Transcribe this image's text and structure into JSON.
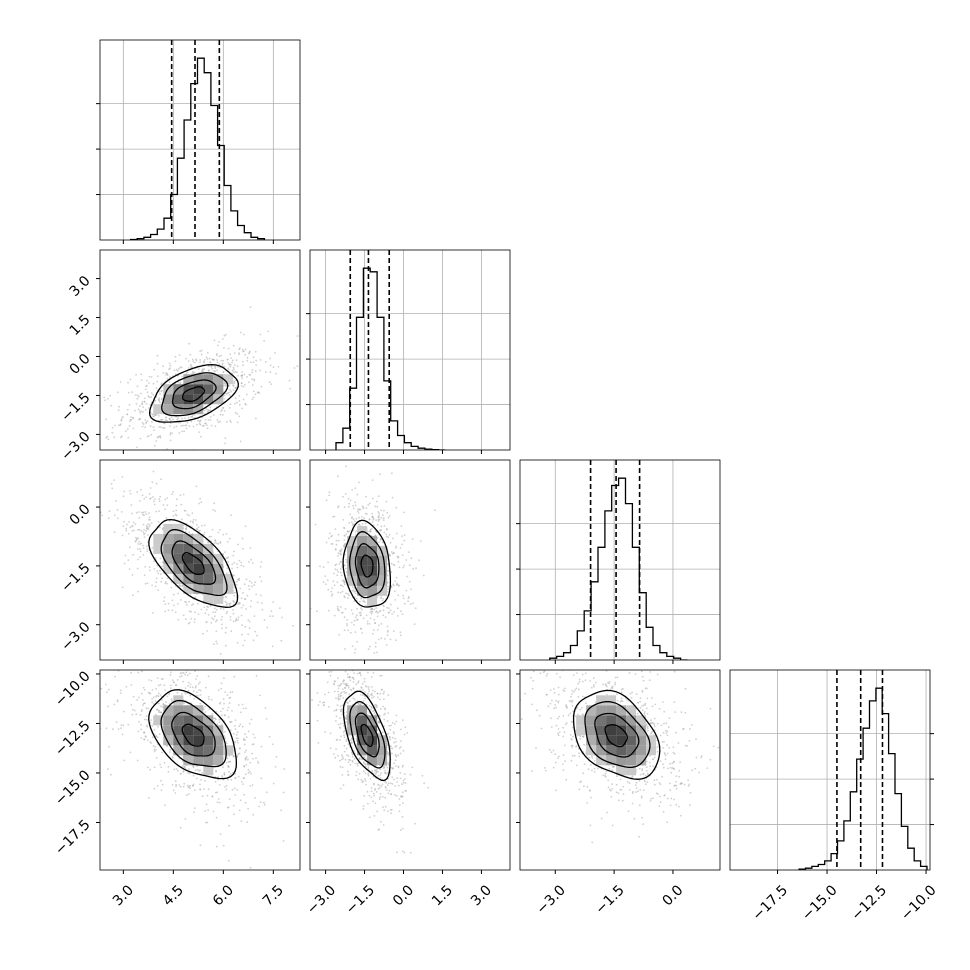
{
  "chart_data": {
    "type": "corner",
    "parameters": [
      {
        "index": 0,
        "range": [
          2.3,
          8.3
        ],
        "ticks": [
          3.0,
          4.5,
          6.0,
          7.5
        ],
        "tick_labels": [
          "3.0",
          "4.5",
          "6.0",
          "7.5"
        ],
        "quantiles": [
          4.45,
          5.15,
          5.88
        ]
      },
      {
        "index": 1,
        "range": [
          -3.6,
          4.1
        ],
        "ticks": [
          -3.0,
          -1.5,
          0.0,
          1.5,
          3.0
        ],
        "tick_labels": [
          "−3.0",
          "−1.5",
          "0.0",
          "1.5",
          "3.0"
        ],
        "quantiles": [
          -2.05,
          -1.35,
          -0.55
        ]
      },
      {
        "index": 2,
        "range": [
          -3.9,
          1.2
        ],
        "ticks": [
          -3.0,
          -1.5,
          0.0
        ],
        "tick_labels": [
          "−3.0",
          "−1.5",
          "0.0"
        ],
        "quantiles": [
          -2.1,
          -1.45,
          -0.85
        ]
      },
      {
        "index": 3,
        "range": [
          -19.9,
          -9.8
        ],
        "ticks": [
          -17.5,
          -15.0,
          -12.5,
          -10.0
        ],
        "tick_labels": [
          "−17.5",
          "−15.0",
          "−12.5",
          "−10.0"
        ],
        "quantiles": [
          -14.5,
          -13.3,
          -12.2
        ]
      }
    ],
    "marginal_histograms": [
      {
        "param": 0,
        "counts": [
          0.003,
          0.007,
          0.015,
          0.03,
          0.06,
          0.12,
          0.25,
          0.45,
          0.66,
          0.86,
          1.0,
          0.92,
          0.74,
          0.52,
          0.3,
          0.16,
          0.08,
          0.04,
          0.015,
          0.007
        ]
      },
      {
        "param": 1,
        "counts": [
          0.04,
          0.12,
          0.34,
          0.73,
          1.0,
          0.98,
          0.73,
          0.38,
          0.16,
          0.08,
          0.04,
          0.02,
          0.01,
          0.005,
          0.002,
          0.0
        ]
      },
      {
        "param": 2,
        "counts": [
          0.01,
          0.02,
          0.04,
          0.08,
          0.16,
          0.27,
          0.43,
          0.62,
          0.82,
          0.96,
          1.0,
          0.86,
          0.62,
          0.37,
          0.18,
          0.08,
          0.04,
          0.02,
          0.01,
          0.0
        ]
      },
      {
        "param": 3,
        "counts": [
          0.005,
          0.01,
          0.02,
          0.03,
          0.05,
          0.09,
          0.16,
          0.27,
          0.43,
          0.61,
          0.78,
          0.93,
          1.0,
          0.86,
          0.64,
          0.42,
          0.24,
          0.12,
          0.05,
          0.02
        ]
      }
    ],
    "joint_distributions": [
      {
        "x_param": 0,
        "y_param": 1,
        "mean": [
          5.1,
          -1.45
        ],
        "sd": [
          0.65,
          0.55
        ],
        "correlation": 0.45
      },
      {
        "x_param": 0,
        "y_param": 2,
        "mean": [
          5.1,
          -1.45
        ],
        "sd": [
          0.65,
          0.55
        ],
        "correlation": -0.6
      },
      {
        "x_param": 1,
        "y_param": 2,
        "mean": [
          -1.4,
          -1.5
        ],
        "sd": [
          0.45,
          0.55
        ],
        "correlation": -0.15
      },
      {
        "x_param": 0,
        "y_param": 3,
        "mean": [
          5.1,
          -13.1
        ],
        "sd": [
          0.65,
          1.1
        ],
        "correlation": -0.45
      },
      {
        "x_param": 1,
        "y_param": 3,
        "mean": [
          -1.4,
          -13.1
        ],
        "sd": [
          0.45,
          1.1
        ],
        "correlation": -0.55
      },
      {
        "x_param": 2,
        "y_param": 3,
        "mean": [
          -1.45,
          -13.1
        ],
        "sd": [
          0.55,
          1.1
        ],
        "correlation": -0.35
      }
    ],
    "contour_levels_sigma": [
      0.5,
      1.0,
      1.5,
      2.0
    ],
    "grid": true,
    "colors": {
      "line": "#000000",
      "points": "#aaaaaa",
      "grid": "#b0b0b0",
      "density": "#000000"
    }
  }
}
